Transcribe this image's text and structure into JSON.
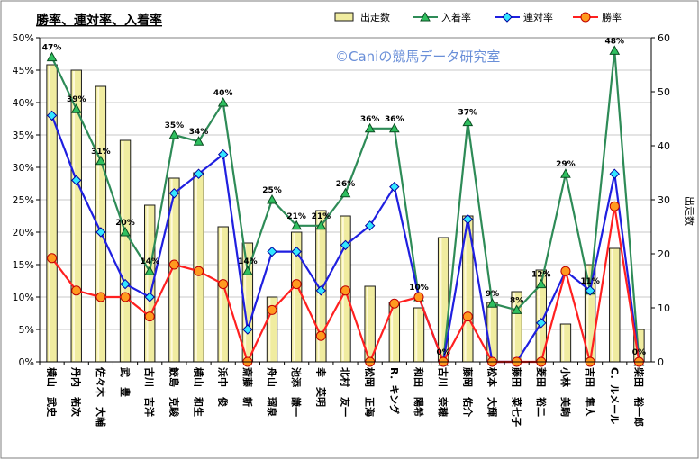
{
  "chart_data": {
    "type": "bar",
    "title": "勝率、連対率、入着率",
    "watermark": "©Caniの競馬データ研究室",
    "y2label": "出走数",
    "ylim": [
      0,
      50
    ],
    "y2lim": [
      0,
      60
    ],
    "yticks": [
      "0%",
      "5%",
      "10%",
      "15%",
      "20%",
      "25%",
      "30%",
      "35%",
      "40%",
      "45%",
      "50%"
    ],
    "y2ticks": [
      "0",
      "10",
      "20",
      "30",
      "40",
      "50",
      "60"
    ],
    "grid": true,
    "legend_position": "top",
    "categories": [
      "横山　武史",
      "丹内　祐次",
      "佐々木　大輔",
      "武　豊",
      "古川　吉洋",
      "鮫島　克駿",
      "横山　和生",
      "浜中　俊",
      "斎藤　新",
      "舟山　瑠泉",
      "池添　謙一",
      "幸　英明",
      "北村　友一",
      "松岡　正海",
      "R．キング",
      "和田　陽希",
      "古川　奈穂",
      "藤岡　佑介",
      "松本　大輝",
      "藤田　菜七子",
      "菱田　裕二",
      "小林　美駒",
      "吉田　隼人",
      "C．ルメール",
      "柴田　裕一郎"
    ],
    "series": [
      {
        "name": "出走数",
        "kind": "bar",
        "axis": "right",
        "color": "#f0eca0",
        "values": [
          55,
          54,
          51,
          41,
          29,
          34,
          35,
          25,
          22,
          12,
          24,
          28,
          27,
          14,
          11,
          10,
          23,
          27,
          11,
          13,
          17,
          7,
          18,
          21,
          6
        ]
      },
      {
        "name": "入着率",
        "kind": "line",
        "axis": "left",
        "color": "#2e8b57",
        "marker": "triangle",
        "values": [
          47,
          39,
          31,
          20,
          14,
          35,
          34,
          40,
          14,
          25,
          21,
          21,
          26,
          36,
          36,
          10,
          0,
          37,
          9,
          8,
          12,
          29,
          11,
          48,
          0
        ]
      },
      {
        "name": "連対率",
        "kind": "line",
        "axis": "left",
        "color": "#1f1fe0",
        "marker": "diamond",
        "values": [
          38,
          28,
          20,
          12,
          10,
          26,
          29,
          32,
          5,
          17,
          17,
          11,
          18,
          21,
          27,
          10,
          0,
          22,
          0,
          0,
          6,
          14,
          11,
          29,
          0
        ]
      },
      {
        "name": "勝率",
        "kind": "line",
        "axis": "left",
        "color": "#ff2020",
        "marker": "circle",
        "values": [
          16,
          11,
          10,
          10,
          7,
          15,
          14,
          12,
          0,
          8,
          12,
          4,
          11,
          0,
          9,
          10,
          0,
          7,
          0,
          0,
          0,
          14,
          0,
          24,
          0
        ]
      }
    ],
    "labels_series": "入着率",
    "labels": [
      "47%",
      "39%",
      "31%",
      "20%",
      "14%",
      "35%",
      "34%",
      "40%",
      "14%",
      "25%",
      "21%",
      "21%",
      "26%",
      "36%",
      "36%",
      "10%",
      "0%",
      "37%",
      "9%",
      "8%",
      "12%",
      "29%",
      "11%",
      "48%",
      "0%"
    ]
  }
}
